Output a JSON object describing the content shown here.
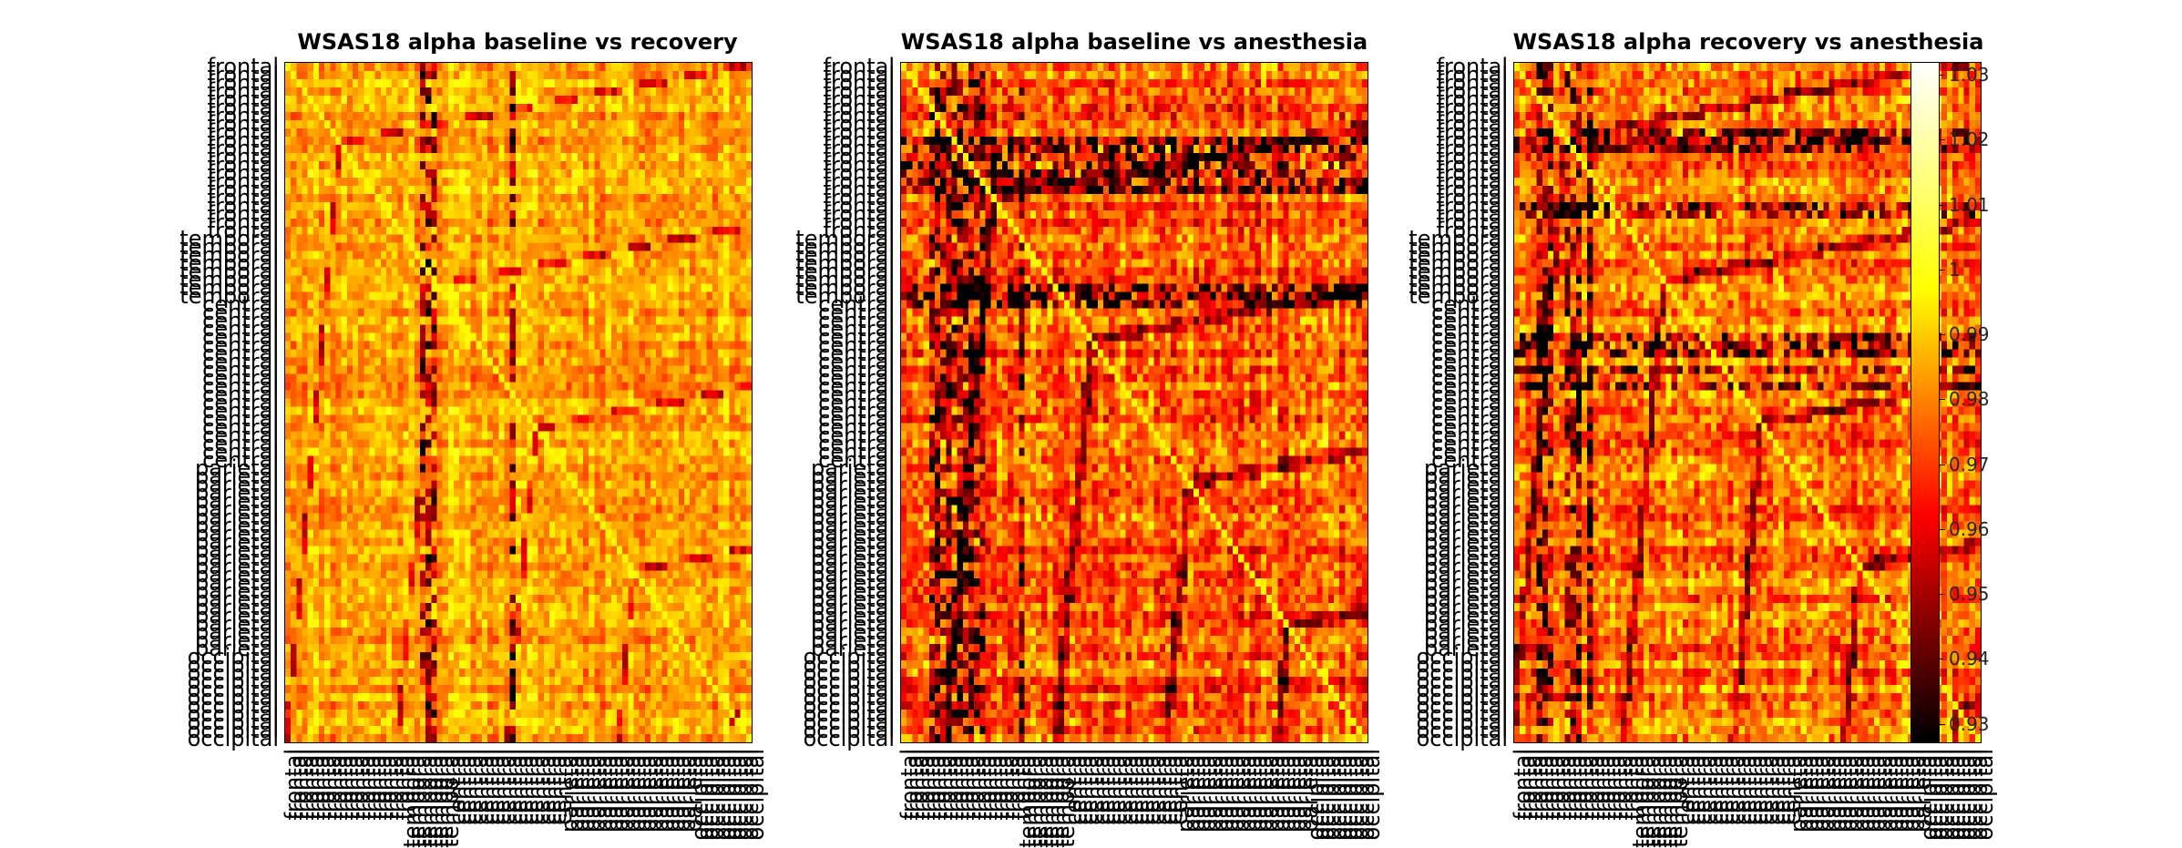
{
  "chart_data": [
    {
      "type": "heatmap",
      "title": "WSAS18 alpha baseline vs recovery",
      "row_label_groups": [
        [
          "frontal",
          21
        ],
        [
          "temporal",
          8
        ],
        [
          "central",
          20
        ],
        [
          "parietal",
          23
        ],
        [
          "occipital",
          11
        ]
      ],
      "col_label_groups": [
        [
          "frontal",
          21
        ],
        [
          "temporal",
          8
        ],
        [
          "central",
          20
        ],
        [
          "parietal",
          23
        ],
        [
          "occipital",
          11
        ]
      ],
      "value_range": [
        0.927,
        1.032
      ],
      "description_of_pattern": "mostly 0.97-1.0 with sparse dark cells"
    },
    {
      "type": "heatmap",
      "title": "WSAS18 alpha baseline vs anesthesia",
      "row_label_groups": [
        [
          "frontal",
          21
        ],
        [
          "temporal",
          8
        ],
        [
          "central",
          20
        ],
        [
          "parietal",
          23
        ],
        [
          "occipital",
          11
        ]
      ],
      "col_label_groups": [
        [
          "frontal",
          21
        ],
        [
          "temporal",
          8
        ],
        [
          "central",
          20
        ],
        [
          "parietal",
          23
        ],
        [
          "occipital",
          11
        ]
      ],
      "value_range": [
        0.927,
        1.032
      ]
    },
    {
      "type": "heatmap",
      "title": "WSAS18 alpha recovery vs anesthesia",
      "row_label_groups": [
        [
          "frontal",
          21
        ],
        [
          "temporal",
          8
        ],
        [
          "central",
          20
        ],
        [
          "parietal",
          23
        ],
        [
          "occipital",
          11
        ]
      ],
      "col_label_groups": [
        [
          "frontal",
          21
        ],
        [
          "temporal",
          8
        ],
        [
          "central",
          20
        ],
        [
          "parietal",
          23
        ],
        [
          "occipital",
          11
        ]
      ],
      "value_range": [
        0.927,
        1.032
      ]
    }
  ],
  "colorbar": {
    "colormap": "hot",
    "min": 0.927,
    "max": 1.032,
    "ticks": [
      "1.03",
      "1.02",
      "1.01",
      "1",
      "0.99",
      "0.98",
      "0.97",
      "0.96",
      "0.95",
      "0.94",
      "0.93"
    ],
    "tick_values": [
      1.03,
      1.02,
      1.01,
      1.0,
      0.99,
      0.98,
      0.97,
      0.96,
      0.95,
      0.94,
      0.93
    ]
  },
  "colors": {
    "colormap_stops": [
      "#000000",
      "#ff0000",
      "#ffff00",
      "#ffffff"
    ]
  }
}
